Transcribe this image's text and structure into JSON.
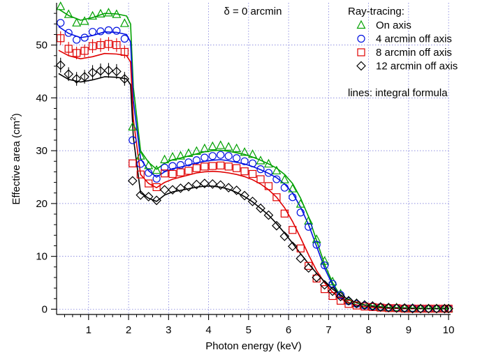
{
  "chart_data": {
    "type": "line",
    "title": "δ = 0 arcmin",
    "xlabel": "Photon energy (keV)",
    "ylabel_main": "Effective area (cm",
    "ylabel_sup": "2",
    "ylabel_end": ")",
    "xlim": [
      0.2,
      10.05
    ],
    "ylim": [
      -1,
      58
    ],
    "xticks": [
      1,
      2,
      3,
      4,
      5,
      6,
      7,
      8,
      9,
      10
    ],
    "xtick_labels": [
      "1",
      "2",
      "3",
      "4",
      "5",
      "6",
      "7",
      "8",
      "9",
      "10"
    ],
    "yticks": [
      0,
      10,
      20,
      30,
      40,
      50
    ],
    "ytick_labels": [
      "0",
      "10",
      "20",
      "30",
      "40",
      "50"
    ],
    "grid": true,
    "legend_title": "Ray-tracing:",
    "legend_note": "lines: integral formula",
    "x": [
      0.3,
      0.5,
      0.7,
      0.9,
      1.1,
      1.3,
      1.5,
      1.7,
      1.9,
      2.1,
      2.3,
      2.5,
      2.7,
      2.9,
      3.1,
      3.3,
      3.5,
      3.7,
      3.9,
      4.1,
      4.3,
      4.5,
      4.7,
      4.9,
      5.1,
      5.3,
      5.5,
      5.7,
      5.9,
      6.1,
      6.3,
      6.5,
      6.7,
      6.9,
      7.1,
      7.3,
      7.5,
      7.7,
      7.9,
      8.1,
      8.3,
      8.5,
      8.7,
      8.9,
      9.1,
      9.3,
      9.5,
      9.7,
      9.9,
      10.0
    ],
    "line_x": [
      0.25,
      0.5,
      0.8,
      1.1,
      1.4,
      1.7,
      1.95,
      2.05,
      2.12,
      2.3,
      2.5,
      2.7,
      2.9,
      3.1,
      3.3,
      3.5,
      3.7,
      3.9,
      4.1,
      4.3,
      4.5,
      4.7,
      4.9,
      5.1,
      5.3,
      5.5,
      5.7,
      5.9,
      6.1,
      6.3,
      6.5,
      6.7,
      6.9,
      7.1,
      7.3,
      7.5,
      7.7,
      7.9,
      8.2,
      8.5,
      9.0,
      9.5,
      10.0
    ],
    "series": [
      {
        "name": "On axis",
        "color": "#00a000",
        "marker": "triangle",
        "values": [
          57.3,
          55.8,
          54.2,
          54.5,
          55.5,
          55.9,
          56.1,
          55.8,
          54.1,
          34.5,
          29.0,
          27.2,
          26.3,
          28.3,
          28.8,
          29.0,
          29.5,
          29.9,
          30.4,
          30.8,
          31.0,
          30.7,
          30.4,
          29.7,
          29.3,
          28.1,
          27.5,
          26.2,
          24.5,
          22.8,
          19.9,
          16.7,
          13.2,
          9.1,
          5.2,
          2.9,
          1.6,
          1.1,
          0.8,
          0.6,
          0.4,
          0.3,
          0.3,
          0.2,
          0.2,
          0.1,
          0.1,
          0.1,
          0.1,
          0.1
        ],
        "errors": [
          0.0,
          0.0,
          0.0,
          0.0,
          0.0,
          0.0,
          0.0,
          0.0,
          0.0,
          0.0,
          0.0,
          0.0,
          0.0,
          0.0,
          0.0,
          0.0,
          0.0,
          0.0,
          0.0,
          0.0,
          0.0,
          0.0,
          0.0,
          0.0,
          0.0,
          0.0,
          0.0,
          0.0,
          0.0,
          0.0,
          0.0,
          0.0,
          0.0,
          0.0,
          0.0,
          0.0,
          0.0,
          0.0,
          0.0,
          0.0,
          0.0,
          0.0,
          0.0,
          0.0,
          0.0,
          0.0,
          0.0,
          0.0,
          0.0,
          0.0
        ],
        "line": [
          56.8,
          55.6,
          54.7,
          55.2,
          56.0,
          55.9,
          55.5,
          54.0,
          42.0,
          30.0,
          27.8,
          26.5,
          27.6,
          28.3,
          28.6,
          29.0,
          29.4,
          29.8,
          30.0,
          30.1,
          29.9,
          29.6,
          29.3,
          28.8,
          28.2,
          27.5,
          26.7,
          25.5,
          23.8,
          21.0,
          17.5,
          13.0,
          8.5,
          5.0,
          2.5,
          1.3,
          0.8,
          0.5,
          0.3,
          0.2,
          0.1,
          0.1,
          0.1
        ]
      },
      {
        "name": "4 arcmin off axis",
        "color": "#0010e0",
        "marker": "circle",
        "values": [
          54.2,
          52.3,
          51.0,
          51.4,
          52.5,
          52.6,
          52.8,
          52.7,
          51.2,
          32.0,
          27.5,
          25.8,
          24.7,
          26.8,
          27.1,
          27.3,
          27.8,
          28.2,
          28.7,
          29.0,
          29.2,
          29.0,
          28.6,
          28.0,
          27.6,
          26.5,
          25.8,
          24.6,
          23.0,
          21.2,
          18.3,
          15.6,
          12.2,
          8.3,
          4.8,
          2.7,
          1.5,
          1.0,
          0.7,
          0.5,
          0.4,
          0.3,
          0.2,
          0.2,
          0.2,
          0.1,
          0.1,
          0.1,
          0.1,
          0.1
        ],
        "errors": [
          0.0,
          0.0,
          0.0,
          0.0,
          0.0,
          0.0,
          0.0,
          0.0,
          0.0,
          0.0,
          0.0,
          0.0,
          0.0,
          0.0,
          0.0,
          0.0,
          0.0,
          0.0,
          0.0,
          0.0,
          0.0,
          0.0,
          0.0,
          0.0,
          0.0,
          0.0,
          0.0,
          0.0,
          0.0,
          0.0,
          0.0,
          0.0,
          0.0,
          0.0,
          0.0,
          0.0,
          0.0,
          0.0,
          0.0,
          0.0,
          0.0,
          0.0,
          0.0,
          0.0,
          0.0,
          0.0,
          0.0,
          0.0,
          0.0,
          0.0
        ],
        "line": [
          53.5,
          52.2,
          51.4,
          51.8,
          52.5,
          52.4,
          52.0,
          50.6,
          39.5,
          28.5,
          26.2,
          25.0,
          26.0,
          26.6,
          26.9,
          27.3,
          27.7,
          28.0,
          28.2,
          28.3,
          28.1,
          27.8,
          27.5,
          27.0,
          26.4,
          25.7,
          24.9,
          23.7,
          22.0,
          19.3,
          16.0,
          11.9,
          7.8,
          4.6,
          2.3,
          1.2,
          0.7,
          0.5,
          0.3,
          0.2,
          0.1,
          0.1,
          0.1
        ]
      },
      {
        "name": "8 arcmin off axis",
        "color": "#e00000",
        "marker": "square",
        "values": [
          51.3,
          49.3,
          48.5,
          48.9,
          49.8,
          50.0,
          50.2,
          50.0,
          48.7,
          27.6,
          25.5,
          23.8,
          23.1,
          25.7,
          25.6,
          25.9,
          26.2,
          26.7,
          27.0,
          27.1,
          27.2,
          27.0,
          26.7,
          26.1,
          25.6,
          24.6,
          23.3,
          21.2,
          18.1,
          15.0,
          11.5,
          8.2,
          5.8,
          3.8,
          2.5,
          1.6,
          1.0,
          0.7,
          0.5,
          0.4,
          0.3,
          0.2,
          0.2,
          0.1,
          0.1,
          0.1,
          0.1,
          0.1,
          0.1,
          0.1
        ],
        "errors": [
          1.3,
          1.3,
          1.2,
          1.2,
          1.3,
          1.3,
          1.3,
          1.3,
          1.2,
          0.0,
          0.0,
          0.0,
          0.0,
          0.0,
          0.0,
          0.0,
          0.0,
          0.0,
          0.0,
          0.0,
          0.0,
          0.0,
          0.0,
          0.0,
          0.0,
          0.0,
          0.0,
          0.0,
          0.0,
          0.0,
          0.0,
          0.0,
          0.0,
          0.0,
          0.0,
          0.0,
          0.0,
          0.0,
          0.0,
          0.0,
          0.0,
          0.0,
          0.0,
          0.0,
          0.0,
          0.0,
          0.0,
          0.0,
          0.0,
          0.0
        ],
        "line": [
          49.0,
          48.0,
          47.4,
          47.8,
          48.4,
          48.3,
          48.0,
          46.8,
          36.0,
          25.5,
          23.8,
          23.0,
          24.0,
          24.6,
          25.0,
          25.4,
          25.8,
          26.0,
          26.1,
          26.0,
          25.8,
          25.5,
          25.1,
          24.5,
          23.7,
          22.6,
          21.2,
          19.2,
          16.6,
          13.5,
          10.3,
          7.3,
          5.0,
          3.2,
          2.0,
          1.2,
          0.8,
          0.5,
          0.3,
          0.2,
          0.1,
          0.1,
          0.1
        ]
      },
      {
        "name": "12 arcmin off axis",
        "color": "#000000",
        "marker": "diamond",
        "values": [
          46.2,
          44.5,
          43.6,
          44.0,
          44.8,
          45.1,
          45.2,
          45.0,
          43.6,
          24.3,
          21.6,
          21.3,
          20.6,
          22.6,
          22.6,
          22.9,
          23.2,
          23.6,
          23.8,
          23.7,
          23.5,
          23.0,
          22.5,
          21.5,
          20.4,
          19.1,
          17.8,
          15.8,
          13.8,
          11.9,
          9.6,
          7.8,
          6.0,
          4.6,
          3.4,
          2.4,
          1.6,
          1.1,
          0.8,
          0.6,
          0.4,
          0.3,
          0.2,
          0.2,
          0.1,
          0.1,
          0.1,
          0.1,
          0.1,
          0.1
        ],
        "errors": [
          1.4,
          1.3,
          1.3,
          1.3,
          1.4,
          1.4,
          1.4,
          1.4,
          1.3,
          0.0,
          0.0,
          0.0,
          0.0,
          0.0,
          0.0,
          0.0,
          0.0,
          0.0,
          0.0,
          0.0,
          0.0,
          0.0,
          0.0,
          0.0,
          0.0,
          0.0,
          0.0,
          0.0,
          0.0,
          0.0,
          0.0,
          0.0,
          0.0,
          0.0,
          0.0,
          0.0,
          0.0,
          0.0,
          0.0,
          0.0,
          0.0,
          0.0,
          0.0,
          0.0,
          0.0,
          0.0,
          0.0,
          0.0,
          0.0,
          0.0
        ],
        "line": [
          44.6,
          43.5,
          43.0,
          43.4,
          44.0,
          43.9,
          43.6,
          42.5,
          32.5,
          22.0,
          21.0,
          20.4,
          21.6,
          22.2,
          22.5,
          22.8,
          23.1,
          23.3,
          23.3,
          23.1,
          22.7,
          22.1,
          21.3,
          20.3,
          19.1,
          17.8,
          16.2,
          14.4,
          12.5,
          10.5,
          8.6,
          6.8,
          5.2,
          3.8,
          2.7,
          1.8,
          1.2,
          0.8,
          0.5,
          0.3,
          0.2,
          0.1,
          0.1
        ]
      }
    ]
  }
}
